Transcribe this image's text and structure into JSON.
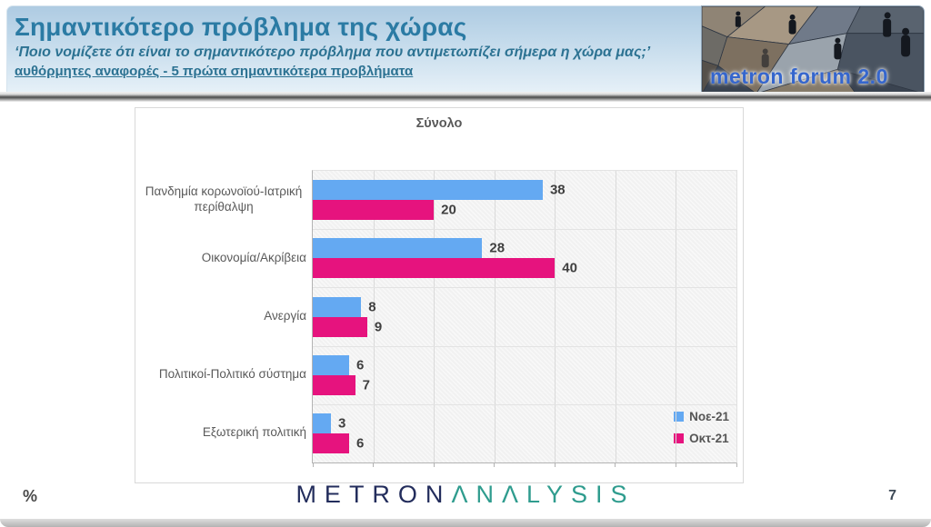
{
  "header": {
    "title": "Σημαντικότερο πρόβλημα της χώρας",
    "subtitle": "‘Ποιο νομίζετε ότι είναι το σημαντικότερο πρόβλημα που αντιμετωπίζει σήμερα η χώρα μας;’",
    "subtitle2": "αυθόρμητες αναφορές - 5 πρώτα σημαντικότερα προβλήματα",
    "logo_text": "metron forum 2.0",
    "title_color": "#2b7ba4"
  },
  "chart_data": {
    "type": "bar",
    "orientation": "horizontal",
    "title": "Σύνολο",
    "categories": [
      "Πανδημία κορωνοϊού-Ιατρική περίθαλψη",
      "Οικονομία/Ακρίβεια",
      "Ανεργία",
      "Πολιτικοί-Πολιτικό σύστημα",
      "Εξωτερική πολιτική"
    ],
    "series": [
      {
        "name": "Νοε-21",
        "color": "#64a9f2",
        "values": [
          38,
          28,
          8,
          6,
          3
        ]
      },
      {
        "name": "Οκτ-21",
        "color": "#e6137e",
        "values": [
          20,
          40,
          9,
          7,
          6
        ]
      }
    ],
    "xlim": [
      0,
      70
    ],
    "gridline_step": 10,
    "grid": "on",
    "data_labels": "on",
    "legend_position": "bottom-right"
  },
  "footer": {
    "unit_label": "%",
    "page_number": "7",
    "logo_part1": "METRON",
    "logo_part2": "ANALYSIS"
  }
}
